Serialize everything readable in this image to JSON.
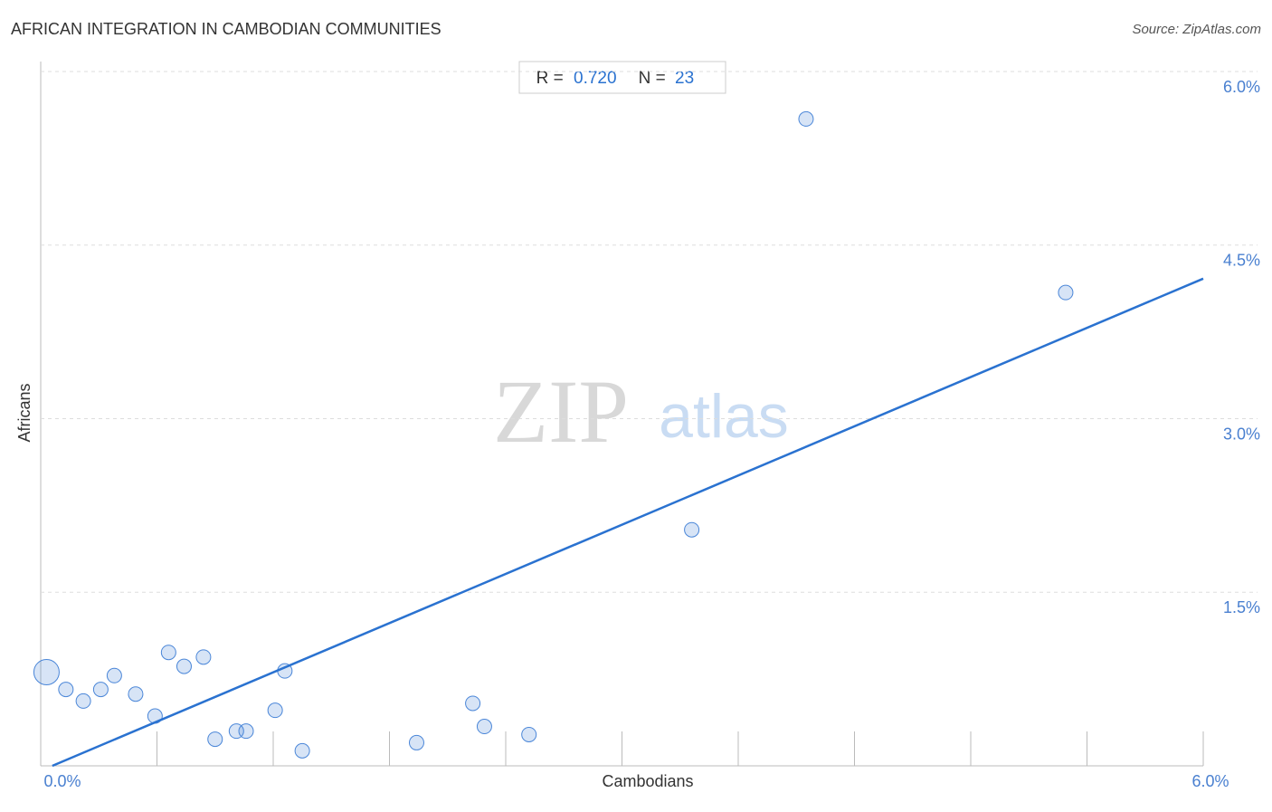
{
  "chart_data": {
    "type": "scatter",
    "title": "AFRICAN INTEGRATION IN CAMBODIAN COMMUNITIES",
    "source": "Source: ZipAtlas.com",
    "x_label": "Cambodians",
    "y_label": "Africans",
    "stats": {
      "r_label": "R = ",
      "r": "0.720",
      "n_label": "N = ",
      "n": "23"
    },
    "watermark": {
      "zip": "ZIP",
      "atlas": "atlas"
    },
    "color": "#4a86d8",
    "x": [
      0.03,
      0.13,
      0.22,
      0.31,
      0.38,
      0.49,
      0.59,
      0.66,
      0.74,
      0.84,
      0.9,
      1.01,
      1.06,
      1.21,
      1.26,
      1.35,
      1.94,
      2.23,
      2.29,
      2.52,
      3.36,
      3.95,
      5.29
    ],
    "values": [
      0.81,
      0.66,
      0.56,
      0.66,
      0.78,
      0.62,
      0.43,
      0.98,
      0.86,
      0.94,
      0.23,
      0.3,
      0.3,
      0.48,
      0.82,
      0.13,
      0.2,
      0.54,
      0.34,
      0.27,
      2.04,
      5.59,
      4.09
    ],
    "sizes": [
      14,
      8,
      8,
      8,
      8,
      8,
      8,
      8,
      8,
      8,
      8,
      8,
      8,
      8,
      8,
      8,
      8,
      8,
      8,
      8,
      8,
      8,
      8
    ],
    "trendline": {
      "x": [
        0.06,
        6.0
      ],
      "values": [
        0,
        4.21
      ],
      "color": "#2a72d0"
    },
    "xlim": [
      0,
      6.0
    ],
    "ylim": [
      0,
      6.0
    ],
    "xticks": [
      {
        "value": 0,
        "label": "0.0%"
      },
      {
        "value": 0.6,
        "label": null
      },
      {
        "value": 1.2,
        "label": null
      },
      {
        "value": 1.8,
        "label": null
      },
      {
        "value": 2.4,
        "label": null
      },
      {
        "value": 3.0,
        "label": null
      },
      {
        "value": 3.6,
        "label": null
      },
      {
        "value": 4.2,
        "label": null
      },
      {
        "value": 4.8,
        "label": null
      },
      {
        "value": 5.4,
        "label": null
      },
      {
        "value": 6.0,
        "label": "6.0%"
      }
    ],
    "yticks": [
      {
        "value": 1.5,
        "label": "1.5%"
      },
      {
        "value": 3.0,
        "label": "3.0%"
      },
      {
        "value": 4.5,
        "label": "4.5%"
      },
      {
        "value": 6.0,
        "label": "6.0%"
      }
    ],
    "grid": true
  }
}
